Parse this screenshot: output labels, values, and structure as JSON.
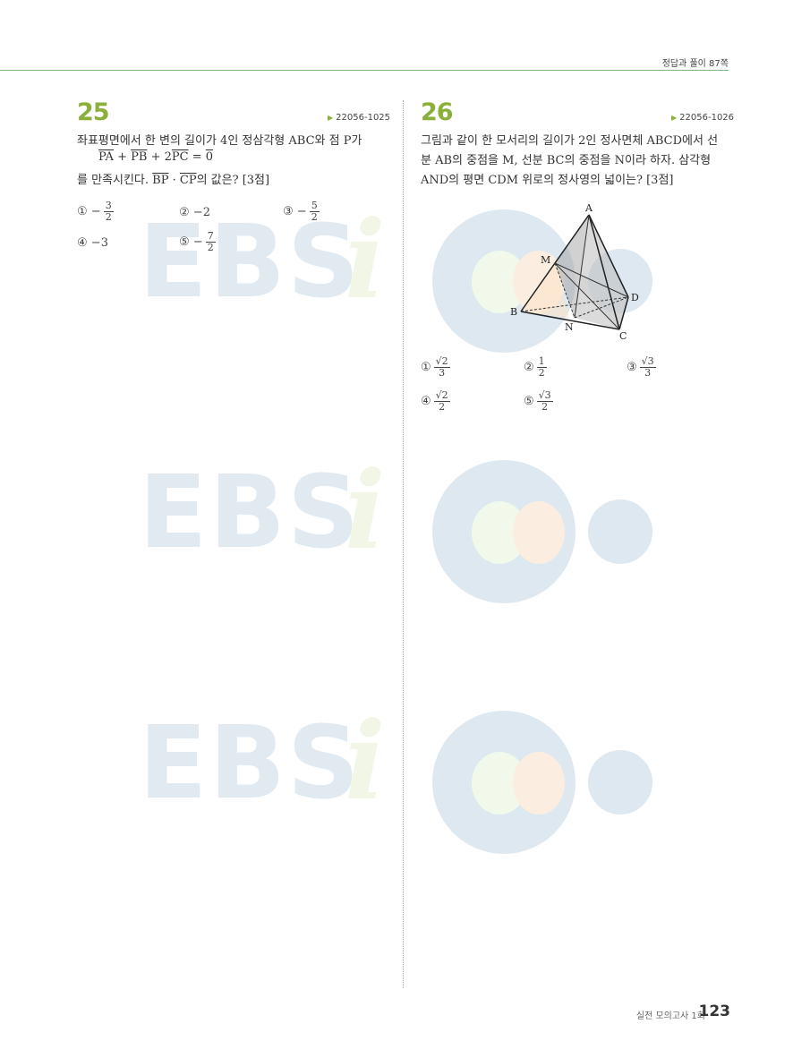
{
  "header": {
    "answer_ref": "정답과 풀이 87쪽"
  },
  "q25": {
    "number": "25",
    "code": "22056-1025",
    "line1": "좌표평면에서 한 변의 길이가 4인 정삼각형 ABC와 점 P가",
    "eq": {
      "pa": "PA",
      "plus1": " + ",
      "pb": "PB",
      "plus2": " + 2",
      "pc": "PC",
      "eq": " = ",
      "zero": "0"
    },
    "line3": {
      "pre": "를 만족시킨다. ",
      "bp": "BP",
      "dot": " · ",
      "cp": "CP",
      "post": "의 값은? [3점]"
    },
    "options": [
      {
        "mark": "①",
        "sign": "−",
        "num": "3",
        "den": "2"
      },
      {
        "mark": "②",
        "text": "−2"
      },
      {
        "mark": "③",
        "sign": "−",
        "num": "5",
        "den": "2"
      },
      {
        "mark": "④",
        "text": "−3"
      },
      {
        "mark": "⑤",
        "sign": "−",
        "num": "7",
        "den": "2"
      }
    ]
  },
  "q26": {
    "number": "26",
    "code": "22056-1026",
    "line1": "그림과 같이 한 모서리의 길이가 2인 정사면체 ABCD에서 선",
    "line2": "분 AB의 중점을 M, 선분 BC의 중점을 N이라 하자. 삼각형",
    "line3": "AND의 평면 CDM 위로의 정사영의 넓이는? [3점]",
    "figure_labels": {
      "a": "A",
      "m": "M",
      "d": "D",
      "b": "B",
      "n": "N",
      "c": "C"
    },
    "options": [
      {
        "mark": "①",
        "num": "√2",
        "den": "3"
      },
      {
        "mark": "②",
        "num": "1",
        "den": "2"
      },
      {
        "mark": "③",
        "num": "√3",
        "den": "3"
      },
      {
        "mark": "④",
        "num": "√2",
        "den": "2"
      },
      {
        "mark": "⑤",
        "num": "√3",
        "den": "2"
      }
    ]
  },
  "watermark": {
    "letters": "EBS",
    "italic": "i"
  },
  "footer": {
    "label": "실전 모의고사 1회",
    "page": "123"
  }
}
